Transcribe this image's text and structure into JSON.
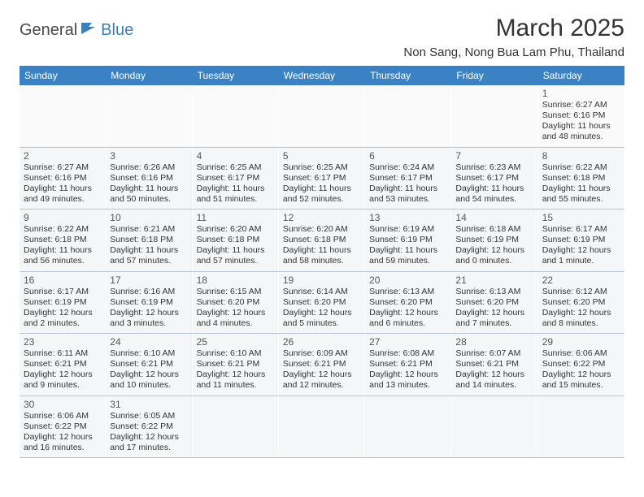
{
  "logo": {
    "text1": "General",
    "text2": "Blue",
    "icon_color": "#3b7fb8"
  },
  "title": "March 2025",
  "location": "Non Sang, Nong Bua Lam Phu, Thailand",
  "colors": {
    "header_bg": "#3b82c4",
    "header_text": "#ffffff",
    "cell_bg": "#f5f6f7",
    "border": "#b8c4d0",
    "text": "#333333",
    "logo_blue": "#3b7fb8",
    "logo_gray": "#4a4a4a"
  },
  "day_names": [
    "Sunday",
    "Monday",
    "Tuesday",
    "Wednesday",
    "Thursday",
    "Friday",
    "Saturday"
  ],
  "weeks": [
    [
      null,
      null,
      null,
      null,
      null,
      null,
      {
        "n": "1",
        "sr": "6:27 AM",
        "ss": "6:16 PM",
        "dl": "11 hours and 48 minutes."
      }
    ],
    [
      {
        "n": "2",
        "sr": "6:27 AM",
        "ss": "6:16 PM",
        "dl": "11 hours and 49 minutes."
      },
      {
        "n": "3",
        "sr": "6:26 AM",
        "ss": "6:16 PM",
        "dl": "11 hours and 50 minutes."
      },
      {
        "n": "4",
        "sr": "6:25 AM",
        "ss": "6:17 PM",
        "dl": "11 hours and 51 minutes."
      },
      {
        "n": "5",
        "sr": "6:25 AM",
        "ss": "6:17 PM",
        "dl": "11 hours and 52 minutes."
      },
      {
        "n": "6",
        "sr": "6:24 AM",
        "ss": "6:17 PM",
        "dl": "11 hours and 53 minutes."
      },
      {
        "n": "7",
        "sr": "6:23 AM",
        "ss": "6:17 PM",
        "dl": "11 hours and 54 minutes."
      },
      {
        "n": "8",
        "sr": "6:22 AM",
        "ss": "6:18 PM",
        "dl": "11 hours and 55 minutes."
      }
    ],
    [
      {
        "n": "9",
        "sr": "6:22 AM",
        "ss": "6:18 PM",
        "dl": "11 hours and 56 minutes."
      },
      {
        "n": "10",
        "sr": "6:21 AM",
        "ss": "6:18 PM",
        "dl": "11 hours and 57 minutes."
      },
      {
        "n": "11",
        "sr": "6:20 AM",
        "ss": "6:18 PM",
        "dl": "11 hours and 57 minutes."
      },
      {
        "n": "12",
        "sr": "6:20 AM",
        "ss": "6:18 PM",
        "dl": "11 hours and 58 minutes."
      },
      {
        "n": "13",
        "sr": "6:19 AM",
        "ss": "6:19 PM",
        "dl": "11 hours and 59 minutes."
      },
      {
        "n": "14",
        "sr": "6:18 AM",
        "ss": "6:19 PM",
        "dl": "12 hours and 0 minutes."
      },
      {
        "n": "15",
        "sr": "6:17 AM",
        "ss": "6:19 PM",
        "dl": "12 hours and 1 minute."
      }
    ],
    [
      {
        "n": "16",
        "sr": "6:17 AM",
        "ss": "6:19 PM",
        "dl": "12 hours and 2 minutes."
      },
      {
        "n": "17",
        "sr": "6:16 AM",
        "ss": "6:19 PM",
        "dl": "12 hours and 3 minutes."
      },
      {
        "n": "18",
        "sr": "6:15 AM",
        "ss": "6:20 PM",
        "dl": "12 hours and 4 minutes."
      },
      {
        "n": "19",
        "sr": "6:14 AM",
        "ss": "6:20 PM",
        "dl": "12 hours and 5 minutes."
      },
      {
        "n": "20",
        "sr": "6:13 AM",
        "ss": "6:20 PM",
        "dl": "12 hours and 6 minutes."
      },
      {
        "n": "21",
        "sr": "6:13 AM",
        "ss": "6:20 PM",
        "dl": "12 hours and 7 minutes."
      },
      {
        "n": "22",
        "sr": "6:12 AM",
        "ss": "6:20 PM",
        "dl": "12 hours and 8 minutes."
      }
    ],
    [
      {
        "n": "23",
        "sr": "6:11 AM",
        "ss": "6:21 PM",
        "dl": "12 hours and 9 minutes."
      },
      {
        "n": "24",
        "sr": "6:10 AM",
        "ss": "6:21 PM",
        "dl": "12 hours and 10 minutes."
      },
      {
        "n": "25",
        "sr": "6:10 AM",
        "ss": "6:21 PM",
        "dl": "12 hours and 11 minutes."
      },
      {
        "n": "26",
        "sr": "6:09 AM",
        "ss": "6:21 PM",
        "dl": "12 hours and 12 minutes."
      },
      {
        "n": "27",
        "sr": "6:08 AM",
        "ss": "6:21 PM",
        "dl": "12 hours and 13 minutes."
      },
      {
        "n": "28",
        "sr": "6:07 AM",
        "ss": "6:21 PM",
        "dl": "12 hours and 14 minutes."
      },
      {
        "n": "29",
        "sr": "6:06 AM",
        "ss": "6:22 PM",
        "dl": "12 hours and 15 minutes."
      }
    ],
    [
      {
        "n": "30",
        "sr": "6:06 AM",
        "ss": "6:22 PM",
        "dl": "12 hours and 16 minutes."
      },
      {
        "n": "31",
        "sr": "6:05 AM",
        "ss": "6:22 PM",
        "dl": "12 hours and 17 minutes."
      },
      null,
      null,
      null,
      null,
      null
    ]
  ],
  "labels": {
    "sunrise": "Sunrise: ",
    "sunset": "Sunset: ",
    "daylight": "Daylight: "
  }
}
